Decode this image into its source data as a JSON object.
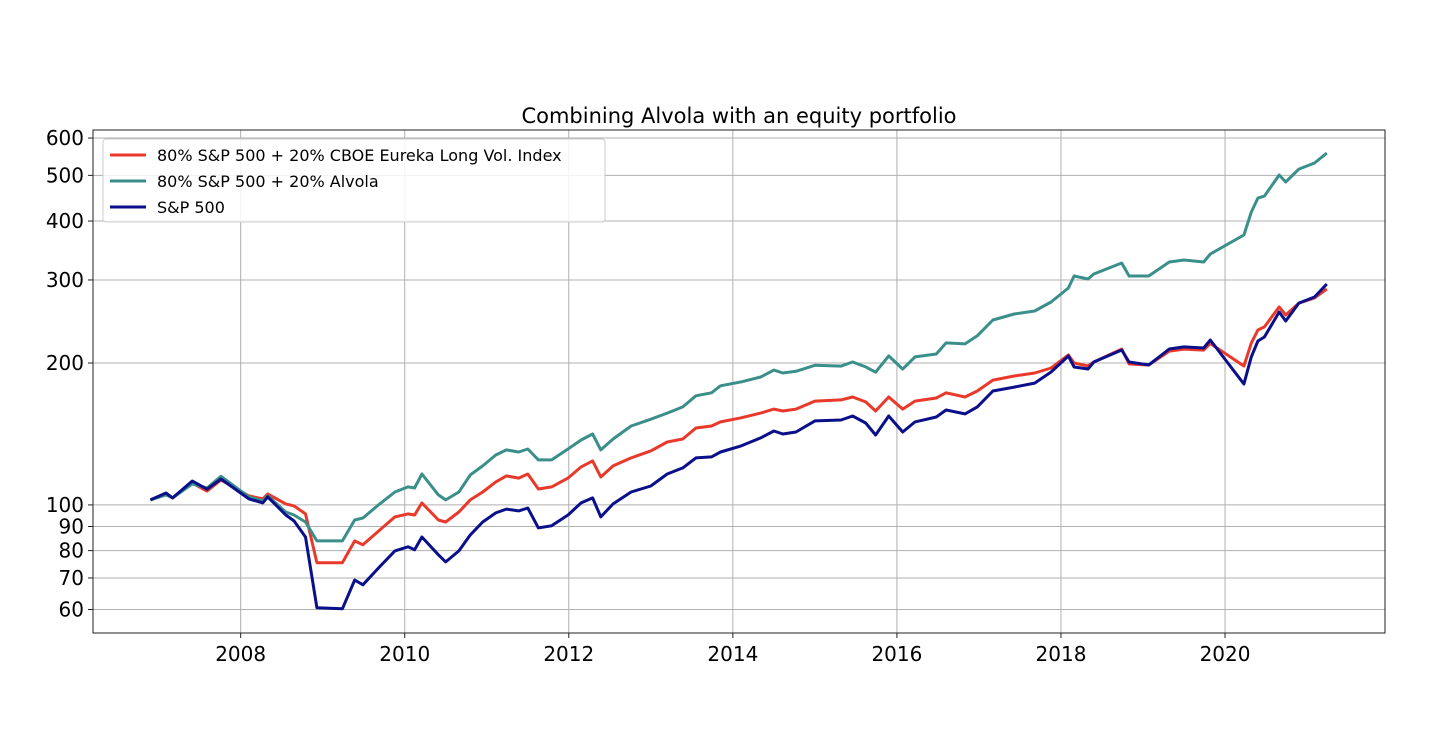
{
  "chart_data": {
    "type": "line",
    "title": "Combining Alvola with an equity portfolio",
    "xlabel": "",
    "ylabel": "",
    "yscale": "log",
    "xlim": [
      2006.2,
      2021.95
    ],
    "ylim": [
      53.5,
      624
    ],
    "grid": true,
    "legend_placement": "top-left",
    "x_ticks": [
      2008,
      2010,
      2012,
      2014,
      2016,
      2018,
      2020
    ],
    "x_tick_labels": [
      "2008",
      "2010",
      "2012",
      "2014",
      "2016",
      "2018",
      "2020"
    ],
    "y_ticks": [
      60,
      70,
      80,
      90,
      100,
      200,
      300,
      400,
      500,
      600
    ],
    "y_tick_labels": [
      "60",
      "70",
      "80",
      "90",
      "100",
      "200",
      "300",
      "400",
      "500",
      "600"
    ],
    "x": [
      2006.9,
      2007.09,
      2007.17,
      2007.41,
      2007.59,
      2007.76,
      2008.1,
      2008.27,
      2008.33,
      2008.55,
      2008.65,
      2008.79,
      2008.93,
      2009.24,
      2009.39,
      2009.49,
      2009.68,
      2009.88,
      2010.04,
      2010.12,
      2010.21,
      2010.41,
      2010.5,
      2010.66,
      2010.8,
      2010.95,
      2011.11,
      2011.24,
      2011.39,
      2011.5,
      2011.63,
      2011.79,
      2011.99,
      2012.15,
      2012.29,
      2012.39,
      2012.54,
      2012.76,
      2013.0,
      2013.2,
      2013.39,
      2013.55,
      2013.74,
      2013.85,
      2014.1,
      2014.34,
      2014.5,
      2014.61,
      2014.77,
      2015.0,
      2015.32,
      2015.46,
      2015.62,
      2015.74,
      2015.9,
      2016.07,
      2016.22,
      2016.48,
      2016.6,
      2016.83,
      2016.98,
      2017.17,
      2017.43,
      2017.68,
      2017.88,
      2018.09,
      2018.16,
      2018.33,
      2018.4,
      2018.74,
      2018.83,
      2019.07,
      2019.32,
      2019.5,
      2019.74,
      2019.82,
      2020.23,
      2020.32,
      2020.4,
      2020.48,
      2020.66,
      2020.74,
      2020.9,
      2021.09,
      2021.24
    ],
    "series": [
      {
        "name": "80% S&P 500 + 20% CBOE Eureka Long Vol. Index",
        "color": "#e8392b",
        "values": [
          102.5,
          105.5,
          103.5,
          111.3,
          107,
          113,
          104.5,
          103,
          105.5,
          100.5,
          99.5,
          95.7,
          75.4,
          75.4,
          83.9,
          82.3,
          88,
          94.3,
          95.7,
          95.2,
          101,
          92.9,
          92,
          96.6,
          102.5,
          106.5,
          111.9,
          115.2,
          114,
          116.3,
          108.1,
          109.2,
          114,
          120.4,
          124,
          114.6,
          121,
          125.8,
          130.2,
          136,
          138,
          145.6,
          147,
          150,
          153,
          156.6,
          159.7,
          158.2,
          159.7,
          166,
          167,
          169.4,
          165.4,
          158.2,
          169.4,
          159.7,
          166,
          168.6,
          172.9,
          169.4,
          174.4,
          184,
          187.7,
          190.5,
          195.2,
          208,
          200,
          197.1,
          201,
          214,
          199,
          198,
          212,
          214,
          213,
          220,
          197.1,
          220.4,
          235,
          238.5,
          263,
          252.8,
          268,
          274.8,
          287
        ]
      },
      {
        "name": "80% S&P 500 + 20% Alvola",
        "color": "#3a8f8a",
        "values": [
          102.5,
          105,
          103.5,
          110.8,
          108.6,
          115,
          104,
          102,
          104.5,
          96.6,
          95.2,
          92,
          83.9,
          83.9,
          92.9,
          93.8,
          100,
          106.5,
          109.2,
          108.6,
          116.3,
          105,
          102.5,
          106.5,
          115.8,
          121,
          127.6,
          130.8,
          129.5,
          131.4,
          124.6,
          124.6,
          131.4,
          137.3,
          141.4,
          130.8,
          138,
          147,
          152,
          156.6,
          161.4,
          170.4,
          172.9,
          178.9,
          182.4,
          186.8,
          193.2,
          190.5,
          192,
          197.8,
          197,
          201,
          196.2,
          191.2,
          207,
          194.1,
          206,
          209,
          220.6,
          219.5,
          228.4,
          246.7,
          254,
          257.8,
          269.4,
          288.4,
          305.8,
          301.4,
          308.8,
          325.9,
          305.8,
          305.8,
          327.5,
          330.7,
          327.5,
          340.5,
          373.6,
          418,
          447.5,
          451.9,
          500.8,
          484,
          515.6,
          531,
          557.5
        ]
      },
      {
        "name": "S&P 500",
        "color": "#0a0f8a",
        "values": [
          102.5,
          106,
          103.5,
          112.4,
          108,
          113.5,
          103,
          101,
          104,
          95.2,
          92.5,
          85.5,
          60.5,
          60.2,
          69.3,
          67.7,
          73.5,
          79.9,
          81.5,
          80.3,
          85.5,
          78.4,
          75.7,
          79.9,
          86.4,
          92,
          96.2,
          98,
          97.1,
          98.5,
          89.4,
          90.3,
          95.2,
          101,
          103.5,
          94.3,
          100.5,
          106.5,
          109.7,
          116.3,
          119.8,
          125.8,
          126.4,
          129.5,
          133.4,
          138.7,
          143.5,
          141.4,
          142.8,
          150.7,
          151.4,
          154.4,
          149.2,
          140.7,
          154.4,
          142.8,
          150,
          153.6,
          159,
          156,
          161.4,
          174.4,
          177.8,
          181.3,
          191.4,
          206.9,
          196.1,
          194.2,
          201,
          213.1,
          201,
          198.1,
          214.1,
          216.3,
          215.2,
          223.8,
          180.5,
          206,
          222.7,
          227.1,
          256.6,
          245.5,
          268,
          276,
          294.1
        ]
      }
    ]
  }
}
